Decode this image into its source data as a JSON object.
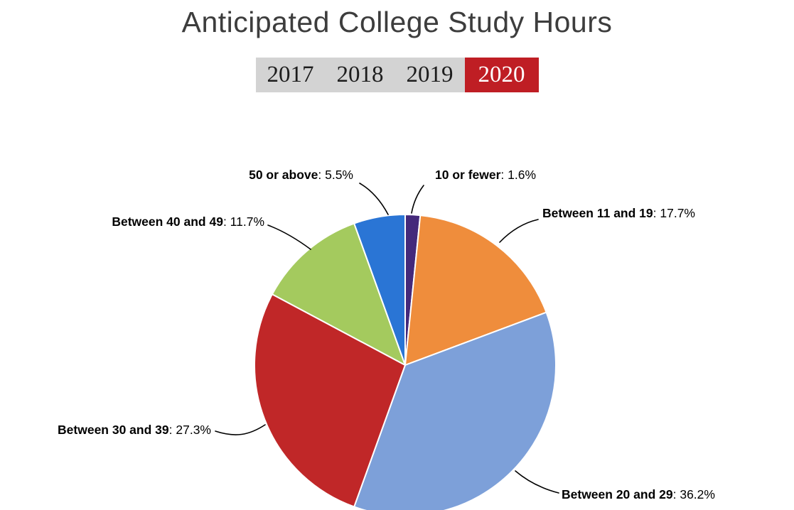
{
  "page": {
    "title": "Anticipated College Study Hours"
  },
  "tabs": [
    {
      "label": "2017",
      "active": false
    },
    {
      "label": "2018",
      "active": false
    },
    {
      "label": "2019",
      "active": false
    },
    {
      "label": "2020",
      "active": true
    }
  ],
  "colors": {
    "tab_bar_bg": "#d3d3d3",
    "tab_text": "#1d1d1d",
    "active_tab_bg": "#bf1e24",
    "active_tab_text": "#ffffff",
    "title_text": "#3d3d3d"
  },
  "chart_data": {
    "type": "pie",
    "title": "Anticipated College Study Hours",
    "selected_year": "2020",
    "start_angle_deg": 0,
    "direction": "clockwise",
    "legend_position": "callout-labels",
    "slices": [
      {
        "label": "10 or fewer",
        "value": 1.6,
        "value_label": ": 1.6%",
        "color": "#44297b"
      },
      {
        "label": "Between 11 and 19",
        "value": 17.7,
        "value_label": ": 17.7%",
        "color": "#ef8d3c"
      },
      {
        "label": "Between 20 and 29",
        "value": 36.2,
        "value_label": ": 36.2%",
        "color": "#7da0d9"
      },
      {
        "label": "Between 30 and 39",
        "value": 27.3,
        "value_label": ": 27.3%",
        "color": "#c02728"
      },
      {
        "label": "Between 40 and 49",
        "value": 11.7,
        "value_label": ": 11.7%",
        "color": "#a4ca5e"
      },
      {
        "label": "50 or above",
        "value": 5.5,
        "value_label": ": 5.5%",
        "color": "#2a75d5"
      }
    ]
  }
}
